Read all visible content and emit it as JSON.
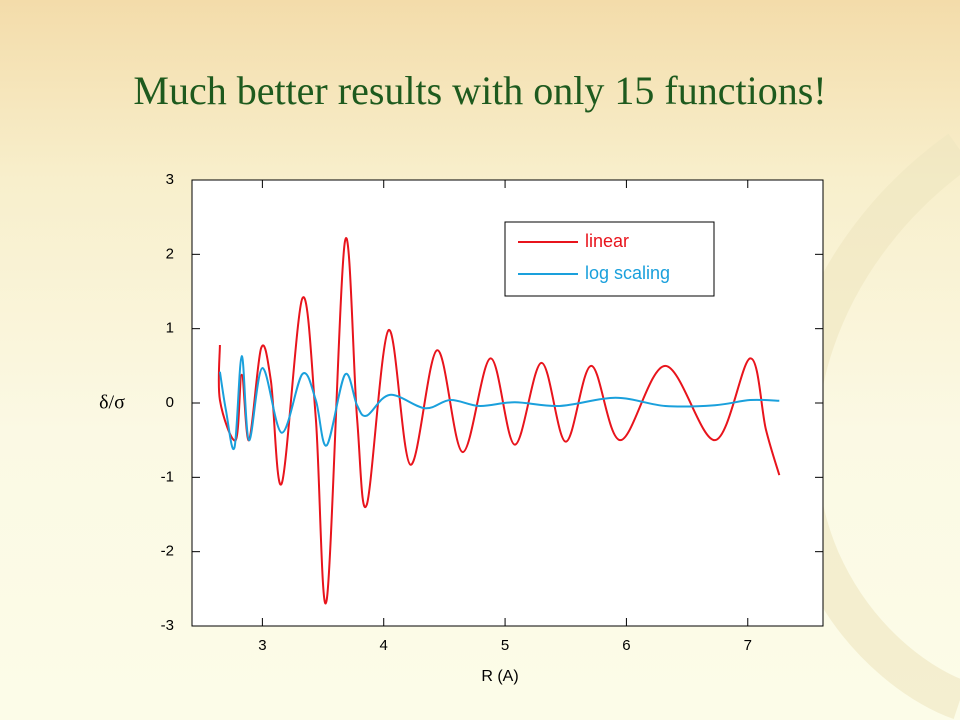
{
  "chart_data": {
    "type": "line",
    "title": "Much better results with only 15 functions!",
    "xlabel": "R (A)",
    "ylabel": "δ/σ",
    "xlim": [
      2.42,
      7.62
    ],
    "ylim": [
      -3,
      3
    ],
    "xticks": [
      3,
      4,
      5,
      6,
      7
    ],
    "yticks": [
      -3,
      -2,
      -1,
      0,
      1,
      2,
      3
    ],
    "legend": "upper right",
    "series": [
      {
        "name": "linear",
        "color": "#e8141c",
        "x": [
          2.65,
          2.65,
          2.78,
          2.83,
          2.89,
          2.99,
          3.07,
          3.16,
          3.33,
          3.44,
          3.53,
          3.68,
          3.78,
          3.86,
          4.04,
          4.22,
          4.44,
          4.65,
          4.88,
          5.08,
          5.3,
          5.5,
          5.71,
          5.95,
          6.32,
          6.73,
          7.02,
          7.15,
          7.26
        ],
        "values": [
          0.78,
          0.04,
          -0.5,
          0.38,
          -0.5,
          0.74,
          0.3,
          -1.08,
          1.41,
          -0.2,
          -2.65,
          2.17,
          -0.2,
          -1.37,
          0.98,
          -0.83,
          0.71,
          -0.66,
          0.6,
          -0.56,
          0.54,
          -0.52,
          0.5,
          -0.5,
          0.5,
          -0.5,
          0.6,
          -0.36,
          -0.97
        ]
      },
      {
        "name": "log scaling",
        "color": "#1aa0dc",
        "x": [
          2.65,
          2.7,
          2.77,
          2.83,
          2.89,
          3.0,
          3.16,
          3.33,
          3.44,
          3.53,
          3.68,
          3.78,
          3.86,
          4.05,
          4.34,
          4.55,
          4.79,
          5.08,
          5.45,
          5.91,
          6.32,
          6.73,
          7.02,
          7.26
        ],
        "values": [
          0.42,
          -0.1,
          -0.6,
          0.63,
          -0.5,
          0.47,
          -0.4,
          0.39,
          0.04,
          -0.57,
          0.38,
          -0.03,
          -0.17,
          0.11,
          -0.07,
          0.04,
          -0.04,
          0.01,
          -0.04,
          0.07,
          -0.04,
          -0.03,
          0.04,
          0.03
        ]
      }
    ]
  }
}
